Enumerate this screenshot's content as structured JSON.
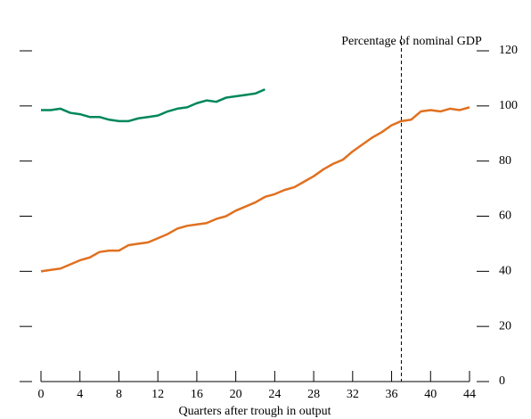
{
  "chart_data": {
    "type": "line",
    "annotation": "Percentage of nominal GDP",
    "x_label": "Quarters after trough in output",
    "xlim": [
      0,
      44
    ],
    "xticks": [
      0,
      4,
      8,
      12,
      16,
      20,
      24,
      28,
      32,
      36,
      40,
      44
    ],
    "ylim": [
      0,
      120
    ],
    "yticks": [
      0,
      20,
      40,
      60,
      80,
      100,
      120
    ],
    "vline": 37,
    "series": [
      {
        "color": "#00875a",
        "x": [
          0,
          1,
          2,
          3,
          4,
          5,
          6,
          7,
          8,
          9,
          10,
          11,
          12,
          13,
          14,
          15,
          16,
          17,
          18,
          19,
          20,
          21,
          22,
          23
        ],
        "values": [
          98.5,
          98.5,
          99,
          97.5,
          97,
          96,
          96,
          95,
          94.5,
          94.5,
          95.5,
          96,
          96.5,
          98,
          99,
          99.5,
          101,
          102,
          101.5,
          103,
          103.5,
          104,
          104.5,
          106
        ]
      },
      {
        "color": "#e07020",
        "x": [
          0,
          1,
          2,
          3,
          4,
          5,
          6,
          7,
          8,
          9,
          10,
          11,
          12,
          13,
          14,
          15,
          16,
          17,
          18,
          19,
          20,
          21,
          22,
          23,
          24,
          25,
          26,
          27,
          28,
          29,
          30,
          31,
          32,
          33,
          34,
          35,
          36,
          37,
          38,
          39,
          40,
          41,
          42,
          43,
          44
        ],
        "values": [
          40,
          40.5,
          41,
          42.5,
          44,
          45,
          47,
          47.5,
          47.5,
          49.5,
          50,
          50.5,
          52,
          53.5,
          55.5,
          56.5,
          57,
          57.5,
          59,
          60,
          62,
          63.5,
          65,
          67,
          68,
          69.5,
          70.5,
          72.5,
          74.5,
          77,
          79,
          80.5,
          83.5,
          86,
          88.5,
          90.5,
          93,
          94.5,
          95,
          98,
          98.5,
          98,
          99,
          98.5,
          99.5
        ]
      }
    ]
  }
}
